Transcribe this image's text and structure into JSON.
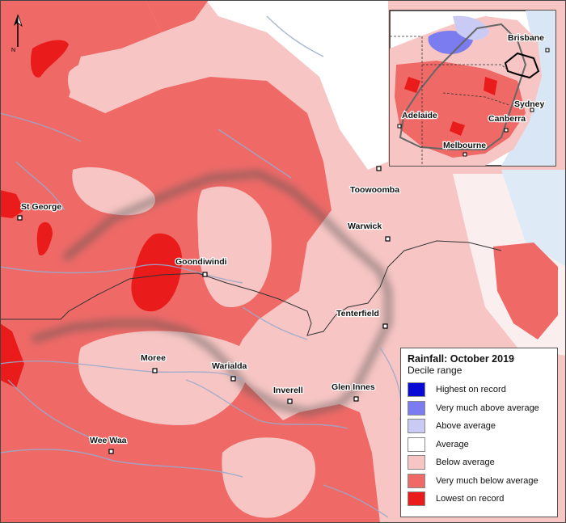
{
  "map": {
    "towns": [
      "St George",
      "Goondiwindi",
      "Moree",
      "Warialda",
      "Inverell",
      "Glen Innes",
      "Tenterfield",
      "Warwick",
      "Toowoomba",
      "Wee Waa"
    ],
    "inset_cities": [
      "Brisbane",
      "Sydney",
      "Canberra",
      "Adelaide",
      "Melbourne"
    ],
    "north_label": "N"
  },
  "legend": {
    "title": "Rainfall: October 2019",
    "subtitle": "Decile range",
    "items": [
      {
        "label": "Highest on record",
        "color": "#0a0ad6"
      },
      {
        "label": "Very much above average",
        "color": "#7a7cf0"
      },
      {
        "label": "Above average",
        "color": "#c9cbf5"
      },
      {
        "label": "Average",
        "color": "#ffffff"
      },
      {
        "label": "Below average",
        "color": "#f7c6c4"
      },
      {
        "label": "Very much below average",
        "color": "#ef6a67"
      },
      {
        "label": "Lowest on record",
        "color": "#ea1b1b"
      }
    ]
  }
}
